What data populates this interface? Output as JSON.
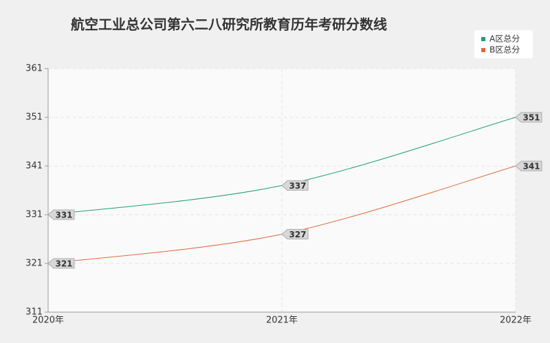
{
  "chart_data": {
    "type": "line",
    "title": "航空工业总公司第六二八研究所教育历年考研分数线",
    "categories": [
      "2020年",
      "2021年",
      "2022年"
    ],
    "series": [
      {
        "name": "A区总分",
        "color": "#1a9e78",
        "values": [
          331,
          337,
          351
        ]
      },
      {
        "name": "B区总分",
        "color": "#e0683a",
        "values": [
          321,
          327,
          341
        ]
      }
    ],
    "ylim": [
      311,
      361
    ],
    "yticks": [
      311,
      321,
      331,
      341,
      351,
      361
    ],
    "grid": true,
    "legend": "top-right",
    "smooth": true
  }
}
